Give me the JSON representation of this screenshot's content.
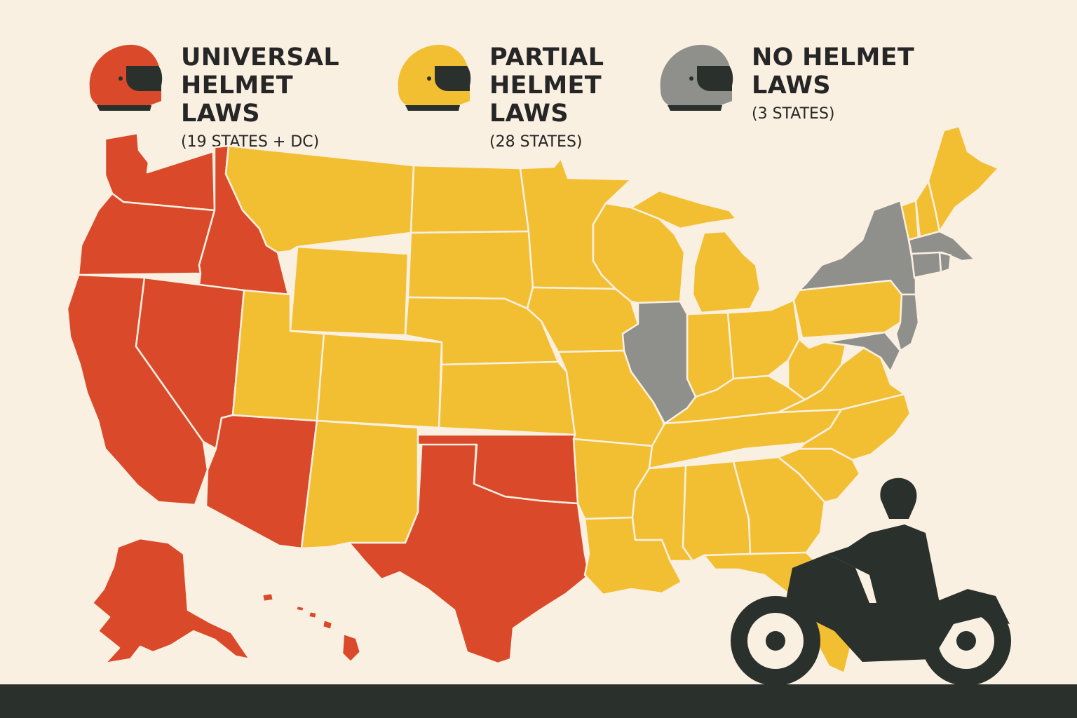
{
  "legend": [
    {
      "key": "universal",
      "title": "UNIVERSAL HELMET LAWS",
      "count": "(19 STATES + DC)",
      "color": "#d9492a",
      "helmet_icon": "helmet-icon"
    },
    {
      "key": "partial",
      "title": "PARTIAL HELMET LAWS",
      "count": "(28 STATES)",
      "color": "#f2bf33",
      "helmet_icon": "helmet-icon"
    },
    {
      "key": "none",
      "title": "NO HELMET LAWS",
      "count": "(3 STATES)",
      "color": "#8f8f8b",
      "helmet_icon": "helmet-icon"
    }
  ],
  "colors": {
    "universal": "#d9492a",
    "partial": "#f2bf33",
    "none": "#8f8f8b",
    "background": "#faf0e1",
    "border": "#faf0e1",
    "silhouette": "#2a302c"
  },
  "decorations": [
    "motorcycle-rider-silhouette",
    "road-strip"
  ]
}
